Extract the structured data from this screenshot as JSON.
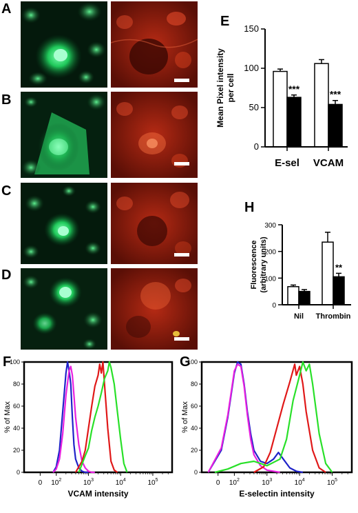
{
  "panels": {
    "A": "A",
    "B": "B",
    "C": "C",
    "D": "D",
    "E": "E",
    "F": "F",
    "G": "G",
    "H": "H"
  },
  "colors": {
    "white_bar": "#ffffff",
    "black_bar": "#000000",
    "fluor_green": "#22c55e",
    "fluor_red": "#c0261a",
    "trace_blue": "#1e22c8",
    "trace_magenta": "#e820e0",
    "trace_red": "#e01818",
    "trace_green": "#28e028"
  },
  "chart_data": [
    {
      "id": "E",
      "type": "bar",
      "ylabel": "Mean Pixel intensity per cell",
      "ylabel_lines": [
        "Mean Pixel intensity",
        "per cell"
      ],
      "categories": [
        "E-sel",
        "VCAM"
      ],
      "ylim": [
        0,
        150
      ],
      "yticks": [
        "0",
        "50",
        "100",
        "150"
      ],
      "series": [
        {
          "fill": "white",
          "values": [
            96,
            106
          ],
          "errors": [
            3,
            5
          ]
        },
        {
          "fill": "black",
          "values": [
            63,
            54
          ],
          "errors": [
            3,
            5
          ]
        }
      ],
      "annotations": [
        "***",
        "***"
      ]
    },
    {
      "id": "H",
      "type": "bar",
      "ylabel": "Fluorescence (arbitrary units)",
      "ylabel_lines": [
        "Fluorescence",
        "(arbitrary units)"
      ],
      "categories": [
        "Nil",
        "Thrombin"
      ],
      "ylim": [
        0,
        300
      ],
      "yticks": [
        "0",
        "100",
        "200",
        "300"
      ],
      "series": [
        {
          "fill": "white",
          "values": [
            68,
            235
          ],
          "errors": [
            6,
            37
          ]
        },
        {
          "fill": "black",
          "values": [
            50,
            105
          ],
          "errors": [
            7,
            13
          ]
        }
      ],
      "annotations": [
        "",
        "**"
      ]
    },
    {
      "id": "F",
      "type": "line",
      "xlabel": "VCAM intensity",
      "ylabel": "% of Max",
      "ylim": [
        0,
        100
      ],
      "yticks": [
        "0",
        "20",
        "40",
        "60",
        "80",
        "100"
      ],
      "xticks": [
        {
          "base": "0",
          "exp": ""
        },
        {
          "base": "10",
          "exp": "2"
        },
        {
          "base": "10",
          "exp": "3"
        },
        {
          "base": "10",
          "exp": "4"
        },
        {
          "base": "10",
          "exp": "5"
        }
      ],
      "x_log_range": [
        1.0,
        5.6
      ],
      "series": [
        {
          "color": "#1e22c8",
          "x": [
            1.9,
            2.0,
            2.1,
            2.2,
            2.3,
            2.35,
            2.4,
            2.45,
            2.5,
            2.55,
            2.6,
            2.7,
            2.8,
            2.9,
            3.0
          ],
          "y": [
            0,
            5,
            20,
            55,
            90,
            100,
            92,
            80,
            50,
            25,
            12,
            4,
            1,
            0,
            0
          ]
        },
        {
          "color": "#e820e0",
          "x": [
            1.9,
            2.0,
            2.1,
            2.2,
            2.3,
            2.4,
            2.45,
            2.5,
            2.55,
            2.6,
            2.7,
            2.8,
            2.9,
            3.0,
            3.1,
            3.2
          ],
          "y": [
            0,
            3,
            12,
            35,
            70,
            92,
            96,
            88,
            70,
            50,
            25,
            10,
            4,
            1,
            0,
            0
          ]
        },
        {
          "color": "#e01818",
          "x": [
            2.6,
            2.8,
            2.9,
            3.0,
            3.1,
            3.2,
            3.3,
            3.35,
            3.4,
            3.45,
            3.5,
            3.6,
            3.7,
            3.8,
            3.9
          ],
          "y": [
            0,
            10,
            20,
            40,
            60,
            78,
            88,
            98,
            90,
            100,
            80,
            40,
            10,
            2,
            0
          ]
        },
        {
          "color": "#28e028",
          "x": [
            2.7,
            2.9,
            3.0,
            3.1,
            3.2,
            3.3,
            3.4,
            3.5,
            3.6,
            3.65,
            3.7,
            3.8,
            3.9,
            4.0,
            4.1,
            4.2
          ],
          "y": [
            0,
            15,
            22,
            38,
            50,
            60,
            72,
            85,
            92,
            100,
            95,
            80,
            55,
            30,
            8,
            0
          ]
        }
      ]
    },
    {
      "id": "G",
      "type": "line",
      "xlabel": "E-selectin intensity",
      "ylabel": "% of Max",
      "ylim": [
        0,
        100
      ],
      "yticks": [
        "0",
        "20",
        "40",
        "60",
        "80",
        "100"
      ],
      "xticks": [
        {
          "base": "0",
          "exp": ""
        },
        {
          "base": "10",
          "exp": "2"
        },
        {
          "base": "10",
          "exp": "3"
        },
        {
          "base": "10",
          "exp": "4"
        },
        {
          "base": "10",
          "exp": "5"
        }
      ],
      "x_log_range": [
        1.0,
        5.6
      ],
      "series": [
        {
          "color": "#1e22c8",
          "x": [
            1.2,
            1.6,
            1.8,
            2.0,
            2.1,
            2.2,
            2.3,
            2.4,
            2.5,
            2.6,
            2.8,
            3.0,
            3.2,
            3.35,
            3.5,
            3.7,
            3.9,
            4.1
          ],
          "y": [
            0,
            20,
            50,
            90,
            100,
            98,
            80,
            55,
            35,
            20,
            10,
            8,
            12,
            18,
            12,
            4,
            1,
            0
          ]
        },
        {
          "color": "#e820e0",
          "x": [
            1.2,
            1.6,
            1.8,
            2.0,
            2.1,
            2.2,
            2.3,
            2.4,
            2.5,
            2.6,
            2.8,
            3.0,
            3.2,
            3.4
          ],
          "y": [
            0,
            22,
            52,
            92,
            98,
            96,
            78,
            52,
            30,
            16,
            6,
            2,
            1,
            0
          ]
        },
        {
          "color": "#e01818",
          "x": [
            2.6,
            2.9,
            3.1,
            3.3,
            3.5,
            3.7,
            3.85,
            3.9,
            4.0,
            4.1,
            4.2,
            4.4,
            4.6,
            4.8
          ],
          "y": [
            0,
            5,
            18,
            40,
            62,
            82,
            98,
            88,
            96,
            80,
            55,
            20,
            4,
            0
          ]
        },
        {
          "color": "#28e028",
          "x": [
            1.4,
            1.8,
            2.2,
            2.6,
            3.0,
            3.4,
            3.6,
            3.8,
            4.0,
            4.1,
            4.2,
            4.3,
            4.4,
            4.6,
            4.8,
            5.0
          ],
          "y": [
            0,
            3,
            8,
            10,
            6,
            12,
            30,
            65,
            88,
            100,
            92,
            98,
            80,
            35,
            8,
            0
          ]
        }
      ]
    }
  ]
}
